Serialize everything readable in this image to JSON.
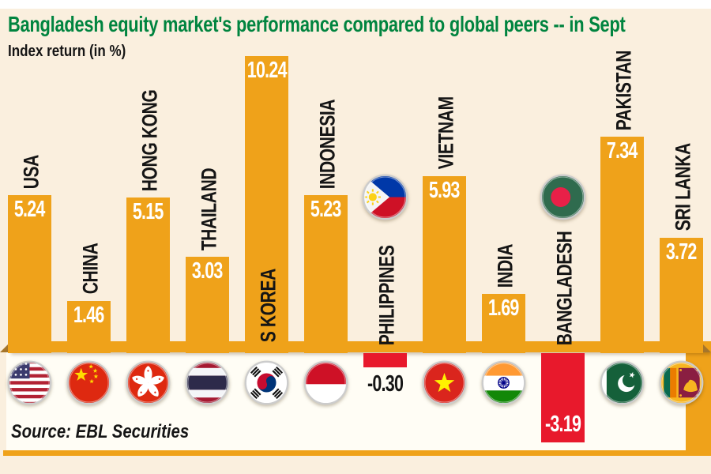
{
  "header": {
    "title": "Bangladesh equity market's performance compared to global peers -- in Sept",
    "subtitle": "Index return (in %)"
  },
  "source": {
    "label": "Source: EBL Securities"
  },
  "colors": {
    "background": "#FAEFDE",
    "accent_orange": "#EFA21A",
    "negative_red": "#E8192C",
    "title_green": "#00843F",
    "label_black": "#151515",
    "value_white": "#FFFFFF",
    "panel_white": "#FFFDF5",
    "ribbon_fold": "#A5752B"
  },
  "chart_data": {
    "type": "bar",
    "title": "Bangladesh equity market's performance compared to global peers -- in Sept",
    "ylabel": "Index return (in %)",
    "categories": [
      "USA",
      "CHINA",
      "HONG KONG",
      "THAILAND",
      "S KOREA",
      "INDONESIA",
      "PHILIPPINES",
      "VIETNAM",
      "INDIA",
      "BANGLADESH",
      "PAKISTAN",
      "SRI LANKA"
    ],
    "values": [
      5.24,
      1.46,
      5.15,
      3.03,
      10.24,
      5.23,
      -0.3,
      5.93,
      1.69,
      -3.19,
      7.34,
      3.72
    ],
    "value_labels": [
      "5.24",
      "1.46",
      "5.15",
      "3.03",
      "10.24",
      "5.23",
      "-0.30",
      "5.93",
      "1.69",
      "-3.19",
      "7.34",
      "3.72"
    ],
    "flag_icons": [
      "usa-flag-icon",
      "china-flag-icon",
      "hongkong-flag-icon",
      "thailand-flag-icon",
      "skorea-flag-icon",
      "indonesia-flag-icon",
      "philippines-flag-icon",
      "vietnam-flag-icon",
      "india-flag-icon",
      "bangladesh-flag-icon",
      "pakistan-flag-icon",
      "srilanka-flag-icon"
    ],
    "legend_position": "none",
    "grid": false,
    "ylim": [
      -3.19,
      10.24
    ],
    "source": "Source: EBL Securities"
  }
}
